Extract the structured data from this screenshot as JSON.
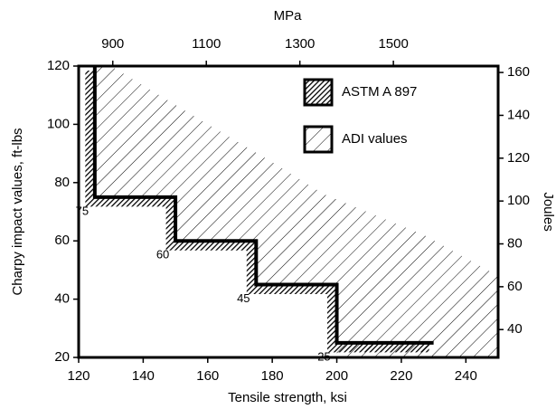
{
  "chart_data": {
    "type": "area",
    "xlabel": "Tensile strength, ksi",
    "ylabel": "Charpy impact values, ft-lbs",
    "x2label": "MPa",
    "y2label": "Joules",
    "xlim": [
      120,
      250
    ],
    "xticks": [
      120,
      140,
      160,
      180,
      200,
      220,
      240
    ],
    "ylim": [
      20,
      120
    ],
    "yticks": [
      20,
      40,
      60,
      80,
      100,
      120
    ],
    "x2lim": [
      827,
      1724
    ],
    "x2ticks": [
      900,
      1100,
      1300,
      1500
    ],
    "y2lim": [
      27,
      163
    ],
    "y2ticks": [
      40,
      60,
      80,
      100,
      120,
      140,
      160
    ],
    "legend": "upper right",
    "series": [
      {
        "name": "ASTM A 897",
        "color": "#000000",
        "x": [
          125,
          125,
          150,
          150,
          175,
          175,
          200,
          200,
          230
        ],
        "values": [
          120,
          75,
          75,
          60,
          60,
          45,
          45,
          25,
          25
        ]
      },
      {
        "name": "ADI values",
        "color": "#000000",
        "x": [
          125,
          130,
          157,
          180,
          196,
          227,
          250,
          250,
          200,
          200,
          175,
          175,
          150,
          150,
          125
        ],
        "values": [
          120,
          120,
          102,
          87,
          76,
          62,
          48,
          20,
          20,
          45,
          45,
          60,
          60,
          75,
          75
        ]
      }
    ]
  }
}
